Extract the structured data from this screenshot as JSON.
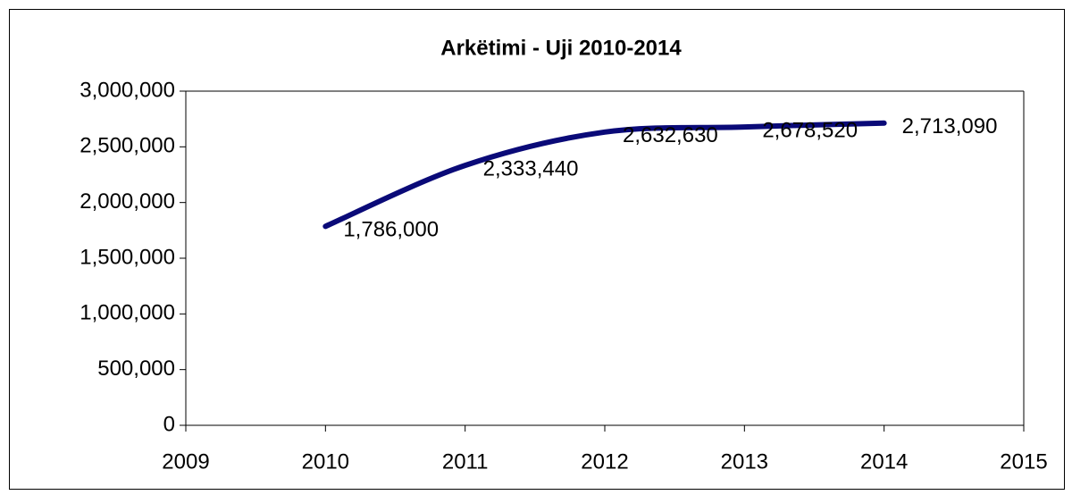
{
  "chart_data": {
    "type": "line",
    "title": "Arkëtimi - Uji  2010-2014",
    "x": [
      2010,
      2011,
      2012,
      2013,
      2014
    ],
    "series": [
      {
        "name": "Uji",
        "color": "#0a0a78",
        "values": [
          1786000,
          2333440,
          2632630,
          2678520,
          2713090
        ],
        "value_labels": [
          "1,786,000",
          "2,333,440",
          "2,632,630",
          "2,678,520",
          "2,713,090"
        ]
      }
    ],
    "xlim": [
      2009,
      2015
    ],
    "xticks": [
      2009,
      2010,
      2011,
      2012,
      2013,
      2014,
      2015
    ],
    "ylim": [
      0,
      3000000
    ],
    "yticks": [
      0,
      {
        "value": 500000,
        "label": "500,000"
      },
      {
        "value": 1000000,
        "label": "1,000,000"
      },
      {
        "value": 1500000,
        "label": "1,500,000"
      },
      {
        "value": 2000000,
        "label": "2,000,000"
      },
      {
        "value": 2500000,
        "label": "2,500,000"
      },
      {
        "value": 3000000,
        "label": "3,000,000"
      }
    ],
    "smooth": true
  }
}
